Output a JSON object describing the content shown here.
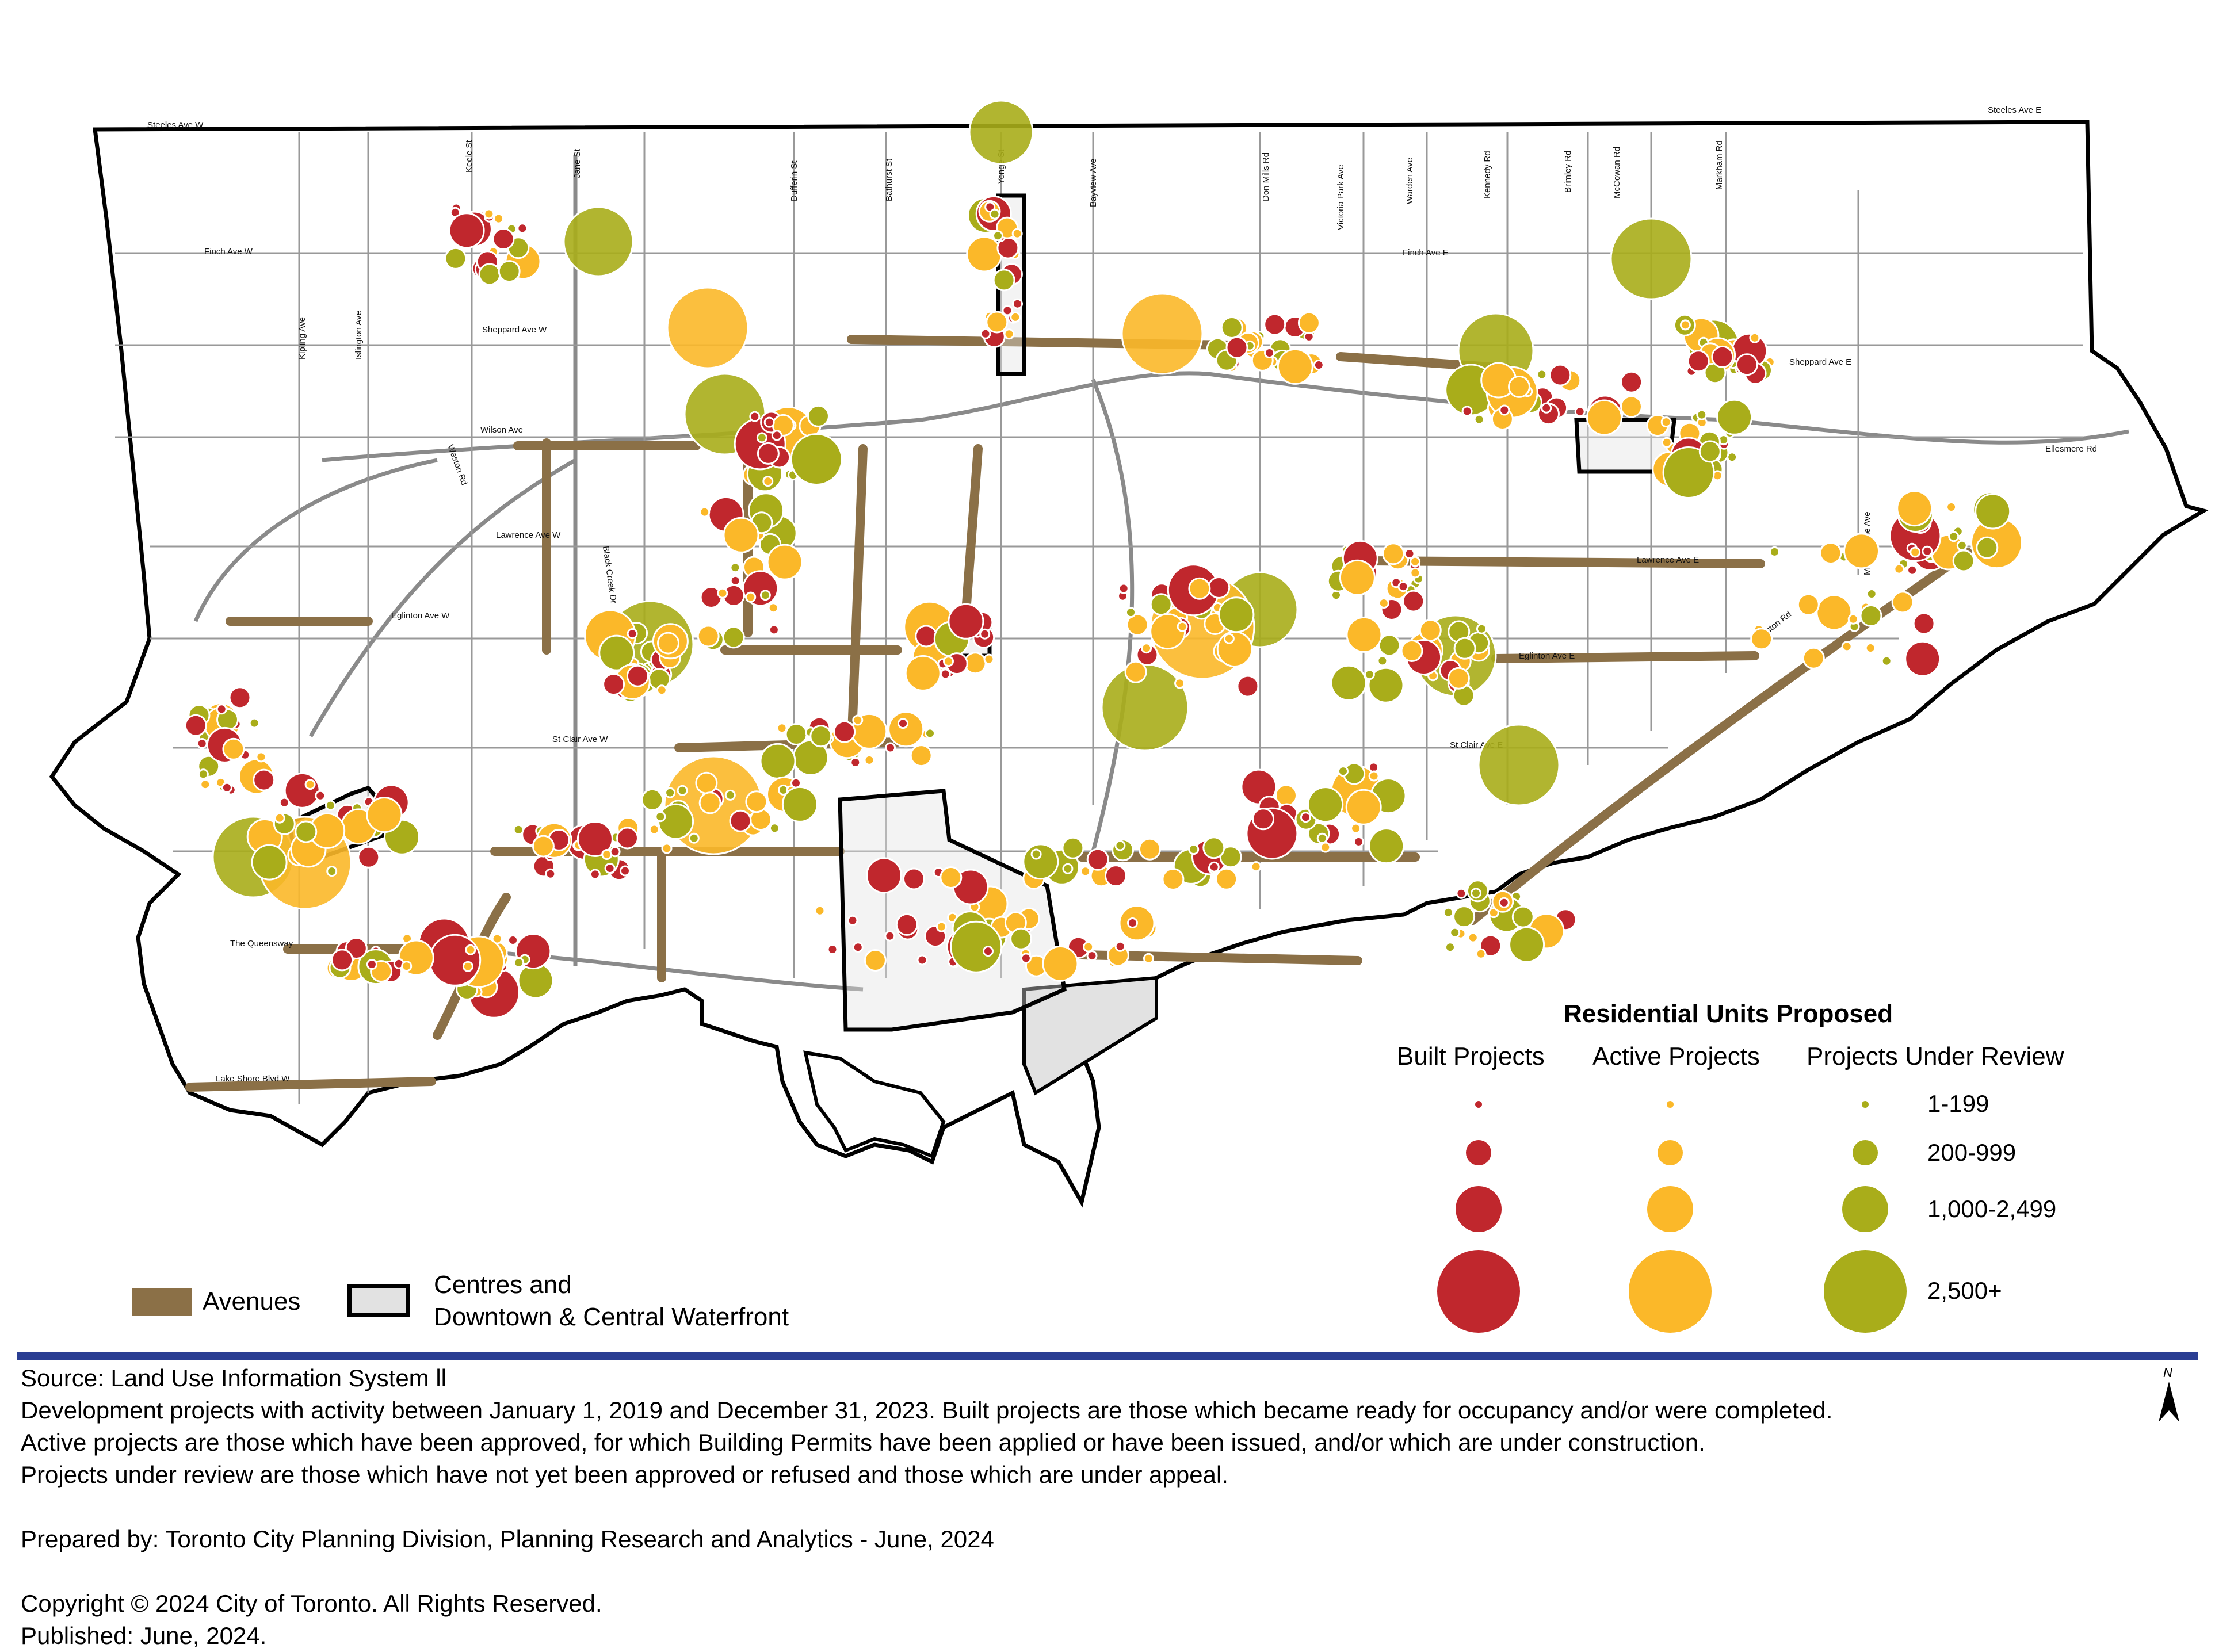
{
  "map": {
    "colors": {
      "built": "#c0272d",
      "active": "#fbb829",
      "review": "#a9ad1a",
      "avenue": "#8b7047",
      "centre_fill": "#e2e2e2",
      "road": "#8a8a8a",
      "boundary": "#000000",
      "rule": "#2a3e93"
    },
    "road_labels": [
      "Steeles Ave W",
      "Steeles Ave E",
      "Finch Ave W",
      "Finch Ave E",
      "Sheppard Ave W",
      "Sheppard Ave E",
      "Wilson Ave",
      "Lawrence Ave W",
      "Lawrence Ave E",
      "Eglinton Ave W",
      "Eglinton Ave E",
      "St Clair Ave W",
      "St Clair Ave E",
      "The Queensway",
      "Lake Shore Blvd W",
      "Ellesmere Rd",
      "Kingston Rd",
      "Morningside Ave",
      "Kipling Ave",
      "Islington Ave",
      "Keele St",
      "Jane St",
      "Dufferin St",
      "Bathurst St",
      "Yonge St",
      "Bayview Ave",
      "Don Mills Rd",
      "Victoria Park Ave",
      "Warden Ave",
      "Kennedy Rd",
      "Brimley Rd",
      "McCowan Rd",
      "Markham Rd",
      "Weston Rd",
      "Black Creek Dr"
    ]
  },
  "legend": {
    "title": "Residential Units Proposed",
    "columns": [
      "Built Projects",
      "Active Projects",
      "Projects Under Review"
    ],
    "ranges": [
      "1-199",
      "200-999",
      "1,000-2,499",
      "2,500+"
    ],
    "avenues_label": "Avenues",
    "centres_label_line1": "Centres and",
    "centres_label_line2": "Downtown & Central Waterfront"
  },
  "notes": {
    "source": "Source: Land Use Information System ll",
    "line1": "Development projects with activity between January 1, 2019 and December 31, 2023. Built projects are those which became ready for occupancy and/or were completed.",
    "line2": "Active projects are those which have been approved, for which Building Permits have been applied or have been issued, and/or which are under construction.",
    "line3": "Projects under review are those which have not yet been approved or refused and those which are under appeal.",
    "prepared": "Prepared by: Toronto City Planning Division, Planning Research and Analytics - June, 2024",
    "copyright": "Copyright © 2024 City of Toronto. All Rights Reserved.",
    "published": "Published: June, 2024."
  },
  "north_arrow": {
    "label": "N"
  }
}
